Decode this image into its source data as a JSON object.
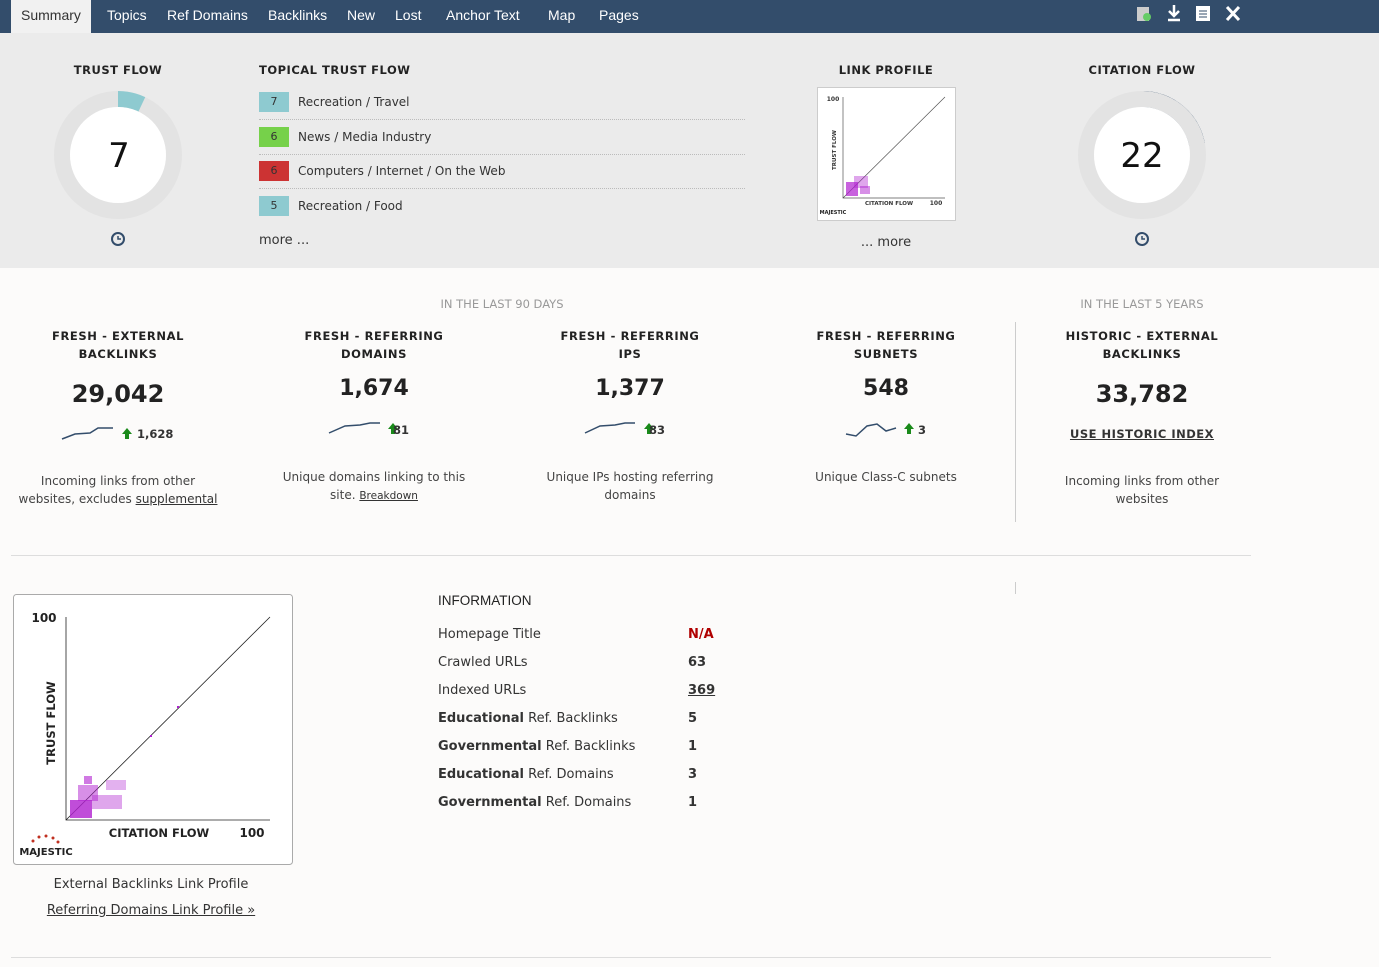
{
  "nav": {
    "tabs": [
      "Summary",
      "Topics",
      "Ref Domains",
      "Backlinks",
      "New",
      "Lost",
      "Anchor Text",
      "Map",
      "Pages"
    ]
  },
  "gauge_range": [
    0,
    100
  ],
  "trust_flow": {
    "title": "TRUST FLOW",
    "value": 7,
    "color": "#8ecad0"
  },
  "topical": {
    "title": "TOPICAL TRUST FLOW",
    "items": [
      {
        "score": 7,
        "label": "Recreation / Travel",
        "color": "#8ecad0"
      },
      {
        "score": 6,
        "label": "News / Media Industry",
        "color": "#76d14a"
      },
      {
        "score": 6,
        "label": "Computers / Internet / On the Web",
        "color": "#cc3333"
      },
      {
        "score": 5,
        "label": "Recreation / Food",
        "color": "#8ecad0"
      }
    ],
    "more": "more ..."
  },
  "link_profile": {
    "title": "LINK PROFILE",
    "more": "... more"
  },
  "citation_flow": {
    "title": "CITATION FLOW",
    "value": 22,
    "color": "#34506e"
  },
  "fresh": {
    "period": "IN THE LAST 90 DAYS",
    "stats": [
      {
        "title": [
          "FRESH - EXTERNAL",
          "BACKLINKS"
        ],
        "value": "29,042",
        "change": "1,628",
        "description": [
          "Incoming links from other",
          "websites, excludes "
        ],
        "link": "supplemental"
      },
      {
        "title": [
          "FRESH - REFERRING",
          "DOMAINS"
        ],
        "value": "1,674",
        "change": "81",
        "description": [
          "Unique domains linking to this",
          "site. "
        ],
        "link": "Breakdown"
      },
      {
        "title": [
          "FRESH - REFERRING",
          "IPS"
        ],
        "value": "1,377",
        "change": "83",
        "description": [
          "Unique IPs hosting referring",
          "domains"
        ]
      },
      {
        "title": [
          "FRESH - REFERRING",
          "SUBNETS"
        ],
        "value": "548",
        "change": "3",
        "description": [
          "Unique Class-C subnets"
        ]
      }
    ]
  },
  "historic": {
    "period": "IN THE LAST 5 YEARS",
    "title": [
      "HISTORIC - EXTERNAL",
      "BACKLINKS"
    ],
    "value": "33,782",
    "link": "USE HISTORIC INDEX",
    "description": [
      "Incoming links from other",
      "websites"
    ]
  },
  "profile_chart": {
    "y_label": "TRUST FLOW",
    "x_label": "CITATION FLOW",
    "y_max": "100",
    "x_max": "100",
    "brand": "MAJESTIC",
    "caption": "External Backlinks Link Profile",
    "link": "Referring Domains Link Profile »"
  },
  "information": {
    "title": "INFORMATION",
    "rows": [
      {
        "label": "Homepage Title",
        "value": "N/A"
      },
      {
        "label": "Crawled URLs",
        "value": 63
      },
      {
        "label": "Indexed URLs",
        "value": 369
      },
      {
        "bold": "Educational",
        "label": " Ref. Backlinks",
        "value": 5
      },
      {
        "bold": "Governmental",
        "label": " Ref. Backlinks",
        "value": 1
      },
      {
        "bold": "Educational",
        "label": " Ref. Domains",
        "value": 3
      },
      {
        "bold": "Governmental",
        "label": " Ref. Domains",
        "value": 1
      }
    ]
  }
}
